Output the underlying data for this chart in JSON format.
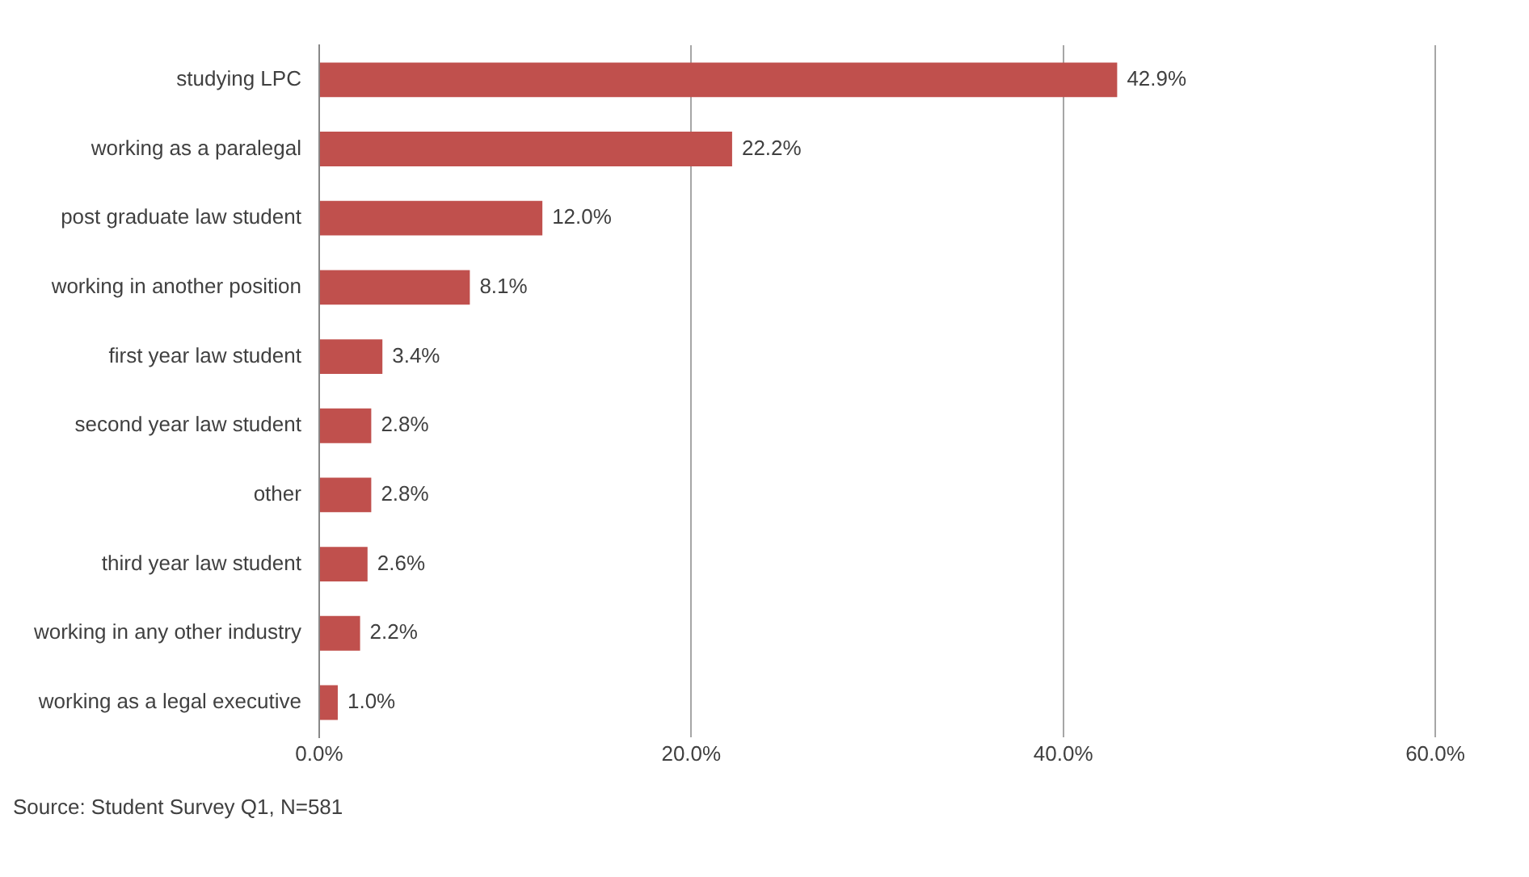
{
  "chart_data": {
    "type": "bar",
    "orientation": "horizontal",
    "categories": [
      "studying LPC",
      "working as a paralegal",
      "post graduate law student",
      "working in another position",
      "first year law student",
      "second year law student",
      "other",
      "third year law student",
      "working in any other industry",
      "working as a legal executive"
    ],
    "values": [
      42.9,
      22.2,
      12.0,
      8.1,
      3.4,
      2.8,
      2.8,
      2.6,
      2.2,
      1.0
    ],
    "value_labels": [
      "42.9%",
      "22.2%",
      "12.0%",
      "8.1%",
      "3.4%",
      "2.8%",
      "2.8%",
      "2.6%",
      "2.2%",
      "1.0%"
    ],
    "color": "#c0504d",
    "xlim": [
      0,
      60
    ],
    "xticks": [
      {
        "value": 0,
        "label": "0.0%"
      },
      {
        "value": 20,
        "label": "20.0%"
      },
      {
        "value": 40,
        "label": "40.0%"
      },
      {
        "value": 60,
        "label": "60.0%"
      }
    ],
    "grid": "x",
    "annotations": [
      "Source: Student Survey Q1, N=581"
    ]
  }
}
